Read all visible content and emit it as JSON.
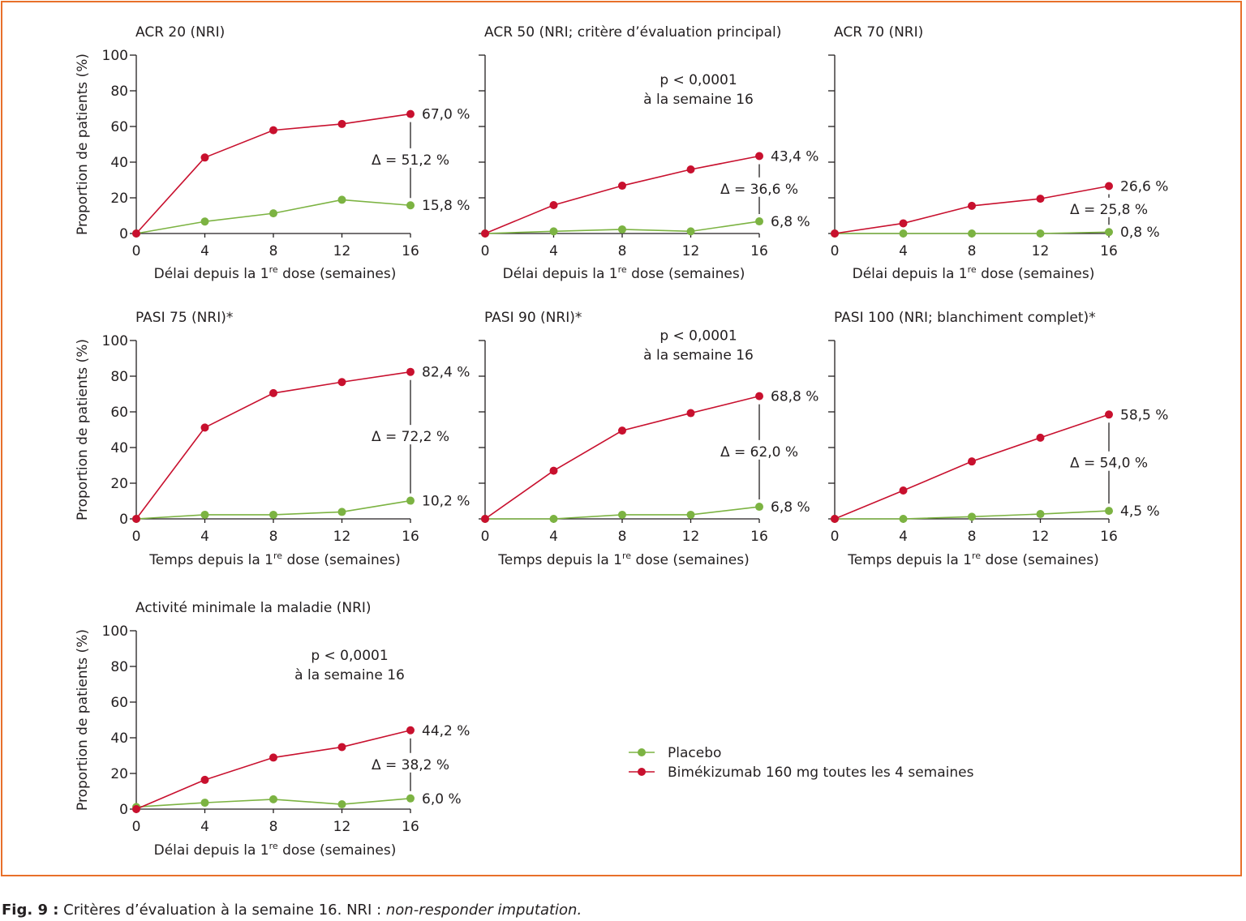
{
  "figure": {
    "caption_label": "Fig. 9 :",
    "caption_text": " Critères d’évaluation à la semaine 16. NRI : ",
    "caption_italic": "non-responder imputation.",
    "colors": {
      "frame": "#e8702a",
      "placebo": "#7cb342",
      "bimekizumab": "#c8102e",
      "axis": "#231f20"
    }
  },
  "legend": {
    "placebo": "Placebo",
    "bimekizumab": "Bimékizumab 160 mg toutes les 4 semaines"
  },
  "chart_data": [
    {
      "type": "line",
      "title": "ACR 20 (NRI)",
      "xlabel": "Délai depuis la 1re dose (semaines)",
      "ylabel": "Proportion de patients (%)",
      "x": [
        0,
        4,
        8,
        12,
        16
      ],
      "ylim": [
        0,
        100
      ],
      "yticks": [
        0,
        20,
        40,
        60,
        80,
        100
      ],
      "show_ytick_labels": true,
      "series": [
        {
          "name": "Placebo",
          "values": [
            0,
            6.7,
            11.3,
            18.9,
            15.8
          ]
        },
        {
          "name": "Bimékizumab 160 mg toutes les 4 semaines",
          "values": [
            0,
            42.6,
            57.9,
            61.4,
            67.0
          ]
        }
      ],
      "labels": {
        "treatment": "67,0 %",
        "placebo": "15,8 %",
        "delta": "Δ = 51,2 %"
      },
      "pvalue": []
    },
    {
      "type": "line",
      "title": "ACR 50 (NRI; critère d’évaluation principal)",
      "xlabel": "Délai depuis la 1re dose (semaines)",
      "ylabel": "",
      "x": [
        0,
        4,
        8,
        12,
        16
      ],
      "ylim": [
        0,
        100
      ],
      "yticks": [
        0,
        20,
        40,
        60,
        80,
        100
      ],
      "show_ytick_labels": false,
      "series": [
        {
          "name": "Placebo",
          "values": [
            0,
            1.2,
            2.3,
            1.2,
            6.8
          ]
        },
        {
          "name": "Bimékizumab 160 mg toutes les 4 semaines",
          "values": [
            0,
            15.9,
            26.8,
            35.9,
            43.4
          ]
        }
      ],
      "labels": {
        "treatment": "43,4 %",
        "placebo": "6,8 %",
        "delta": "Δ = 36,6 %"
      },
      "pvalue": [
        "p < 0,0001",
        "à la semaine 16"
      ]
    },
    {
      "type": "line",
      "title": "ACR 70 (NRI)",
      "xlabel": "Délai depuis la 1re dose (semaines)",
      "ylabel": "",
      "x": [
        0,
        4,
        8,
        12,
        16
      ],
      "ylim": [
        0,
        100
      ],
      "yticks": [
        0,
        20,
        40,
        60,
        80,
        100
      ],
      "show_ytick_labels": false,
      "series": [
        {
          "name": "Placebo",
          "values": [
            0,
            0,
            0,
            0,
            0.8
          ]
        },
        {
          "name": "Bimékizumab 160 mg toutes les 4 semaines",
          "values": [
            0,
            5.7,
            15.5,
            19.5,
            26.6
          ]
        }
      ],
      "labels": {
        "treatment": "26,6 %",
        "placebo": "0,8 %",
        "delta": "Δ = 25,8 %"
      },
      "pvalue": []
    },
    {
      "type": "line",
      "title": "PASI 75 (NRI)*",
      "xlabel": "Temps depuis la 1re dose (semaines)",
      "ylabel": "Proportion de patients (%)",
      "x": [
        0,
        4,
        8,
        12,
        16
      ],
      "ylim": [
        0,
        100
      ],
      "yticks": [
        0,
        20,
        40,
        60,
        80,
        100
      ],
      "show_ytick_labels": true,
      "series": [
        {
          "name": "Placebo",
          "values": [
            0,
            2.3,
            2.3,
            3.9,
            10.2
          ]
        },
        {
          "name": "Bimékizumab 160 mg toutes les 4 semaines",
          "values": [
            0,
            51.2,
            70.5,
            76.7,
            82.4
          ]
        }
      ],
      "labels": {
        "treatment": "82,4 %",
        "placebo": "10,2 %",
        "delta": "Δ = 72,2 %"
      },
      "pvalue": []
    },
    {
      "type": "line",
      "title": "PASI 90 (NRI)*",
      "xlabel": "Temps depuis la 1re dose (semaines)",
      "ylabel": "",
      "x": [
        0,
        4,
        8,
        12,
        16
      ],
      "ylim": [
        0,
        100
      ],
      "yticks": [
        0,
        20,
        40,
        60,
        80,
        100
      ],
      "show_ytick_labels": false,
      "series": [
        {
          "name": "Placebo",
          "values": [
            0,
            0,
            2.3,
            2.3,
            6.8
          ]
        },
        {
          "name": "Bimékizumab 160 mg toutes les 4 semaines",
          "values": [
            0,
            27.0,
            49.5,
            59.3,
            68.8
          ]
        }
      ],
      "labels": {
        "treatment": "68,8 %",
        "placebo": "6,8 %",
        "delta": "Δ = 62,0 %"
      },
      "pvalue": [
        "p < 0,0001",
        "à la semaine 16"
      ]
    },
    {
      "type": "line",
      "title": "PASI 100 (NRI; blanchiment complet)*",
      "xlabel": "Temps depuis la 1re dose (semaines)",
      "ylabel": "",
      "x": [
        0,
        4,
        8,
        12,
        16
      ],
      "ylim": [
        0,
        100
      ],
      "yticks": [
        0,
        20,
        40,
        60,
        80,
        100
      ],
      "show_ytick_labels": false,
      "series": [
        {
          "name": "Placebo",
          "values": [
            0,
            0,
            1.2,
            2.7,
            4.5
          ]
        },
        {
          "name": "Bimékizumab 160 mg toutes les 4 semaines",
          "values": [
            0,
            15.9,
            32.2,
            45.5,
            58.5
          ]
        }
      ],
      "labels": {
        "treatment": "58,5 %",
        "placebo": "4,5 %",
        "delta": "Δ = 54,0 %"
      },
      "pvalue": []
    },
    {
      "type": "line",
      "title": "Activité minimale la maladie (NRI)",
      "xlabel": "Délai depuis la 1re dose (semaines)",
      "ylabel": "Proportion de patients (%)",
      "x": [
        0,
        4,
        8,
        12,
        16
      ],
      "ylim": [
        0,
        100
      ],
      "yticks": [
        0,
        20,
        40,
        60,
        80,
        100
      ],
      "show_ytick_labels": true,
      "series": [
        {
          "name": "Placebo",
          "values": [
            1.2,
            3.6,
            5.5,
            2.7,
            6.0
          ]
        },
        {
          "name": "Bimékizumab 160 mg toutes les 4 semaines",
          "values": [
            0,
            16.4,
            28.9,
            34.8,
            44.2
          ]
        }
      ],
      "labels": {
        "treatment": "44,2 %",
        "placebo": "6,0 %",
        "delta": "Δ = 38,2 %"
      },
      "pvalue": [
        "p < 0,0001",
        "à la semaine 16"
      ]
    }
  ]
}
